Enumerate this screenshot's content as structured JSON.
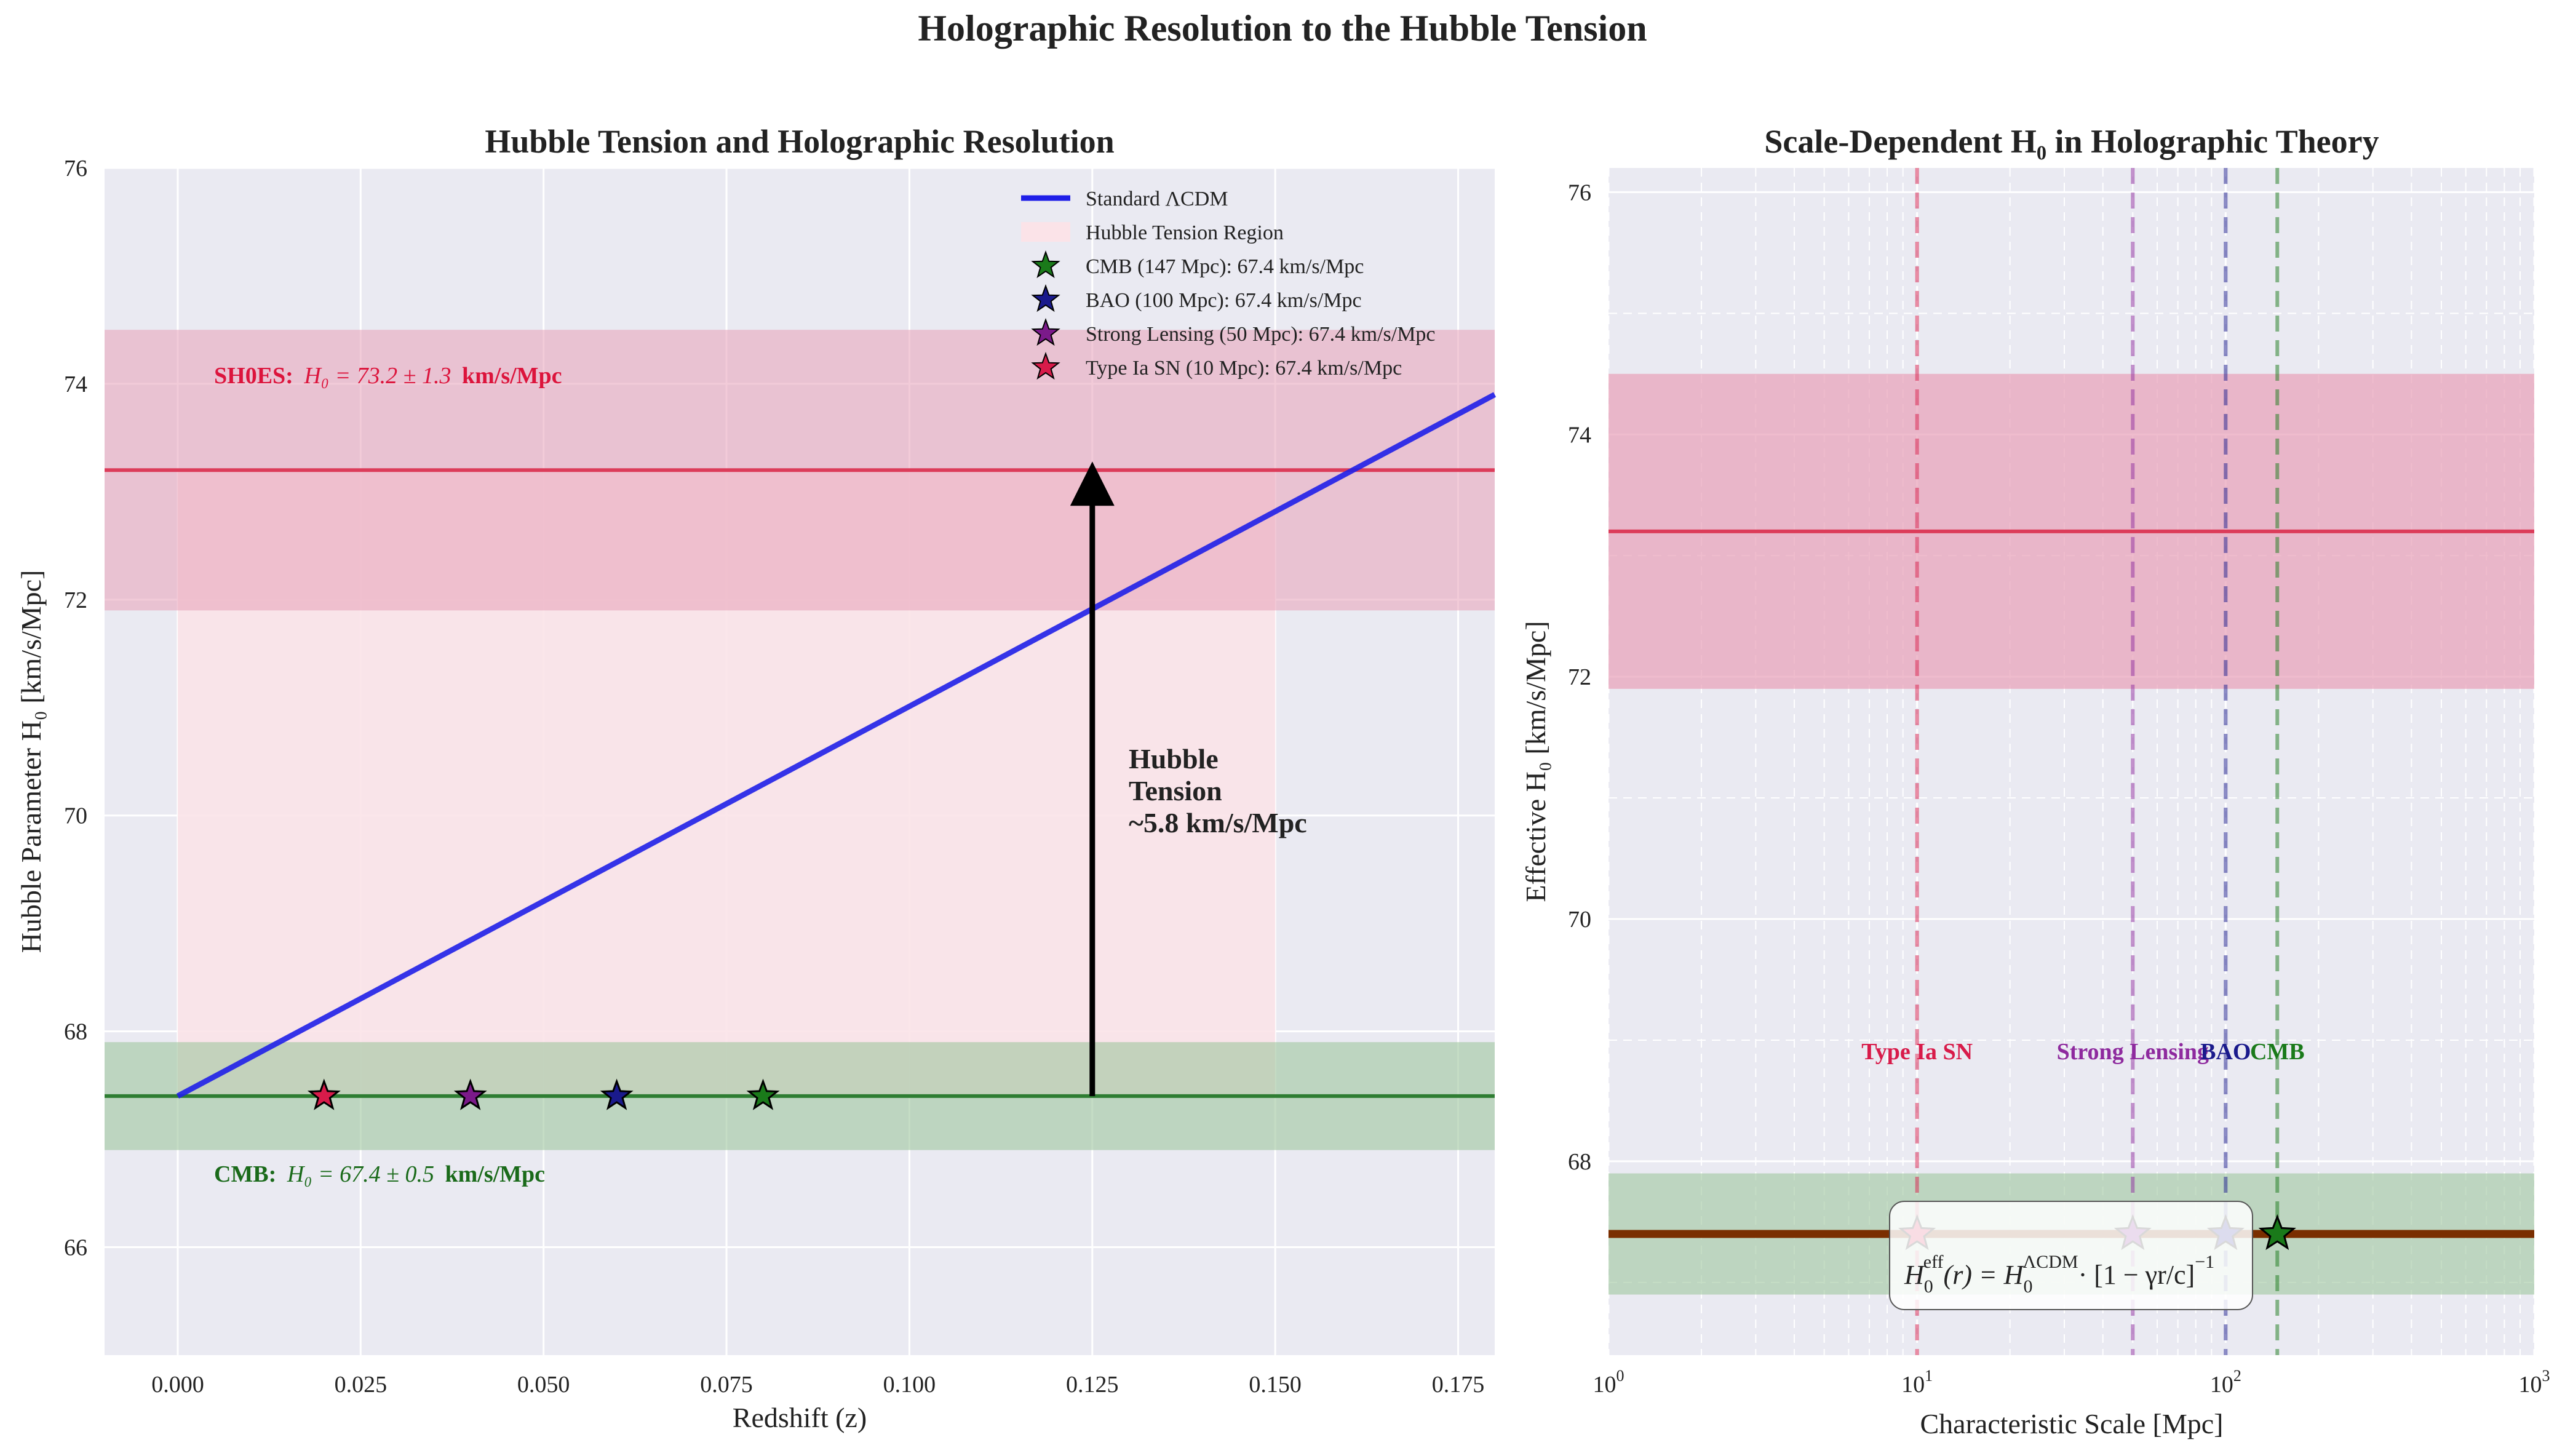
{
  "figure": {
    "suptitle": "Holographic Resolution to the Hubble Tension"
  },
  "chart_data": [
    {
      "type": "line",
      "title": "Hubble Tension and Holographic Resolution",
      "xlabel": "Redshift (z)",
      "ylabel": "Hubble Parameter H₀ [km/s/Mpc]",
      "xlim": [
        -0.01,
        0.18
      ],
      "ylim": [
        65,
        76
      ],
      "xticks": [
        0.0,
        0.025,
        0.05,
        0.075,
        0.1,
        0.125,
        0.15,
        0.175
      ],
      "xtick_labels": [
        "0.000",
        "0.025",
        "0.050",
        "0.075",
        "0.100",
        "0.125",
        "0.150",
        "0.175"
      ],
      "yticks": [
        66,
        68,
        70,
        72,
        74,
        76
      ],
      "ytick_labels": [
        "66",
        "68",
        "70",
        "72",
        "74",
        "76"
      ],
      "grid": true,
      "legend_position": "upper-right",
      "series": [
        {
          "name": "Standard ΛCDM",
          "kind": "line",
          "color": "#1f1fe8",
          "x": [
            0.0,
            0.18
          ],
          "y": [
            67.4,
            73.9
          ]
        }
      ],
      "bands": [
        {
          "name": "SH0ES band",
          "ymin": 71.9,
          "ymax": 74.5,
          "color": "#e8a0b8"
        },
        {
          "name": "CMB band",
          "ymin": 66.9,
          "ymax": 67.9,
          "color": "#9ec79e"
        },
        {
          "name": "Hubble Tension Region",
          "xmin": 0.0,
          "xmax": 0.15,
          "ymin": 67.4,
          "ymax": 73.2,
          "color": "#fbe3e8"
        }
      ],
      "hlines": [
        {
          "y": 73.2,
          "color": "#dc3c5a"
        },
        {
          "y": 67.4,
          "color": "#2e7d32"
        }
      ],
      "markers": [
        {
          "name": "CMB (147 Mpc): 67.4 km/s/Mpc",
          "x": 0.08,
          "y": 67.4,
          "color": "#1a7a1a"
        },
        {
          "name": "BAO (100 Mpc): 67.4 km/s/Mpc",
          "x": 0.06,
          "y": 67.4,
          "color": "#1a1a8c"
        },
        {
          "name": "Strong Lensing (50 Mpc): 67.4 km/s/Mpc",
          "x": 0.04,
          "y": 67.4,
          "color": "#7b1a8a"
        },
        {
          "name": "Type Ia SN (10 Mpc): 67.4 km/s/Mpc",
          "x": 0.02,
          "y": 67.4,
          "color": "#d81b4a"
        }
      ],
      "arrow": {
        "x": 0.125,
        "y_from": 67.4,
        "y_to": 73.2
      },
      "annotations": {
        "shoes_label": "SH0ES:",
        "shoes_value": "H₀ = 73.2 ± 1.3",
        "shoes_unit": "km/s/Mpc",
        "cmb_label": "CMB:",
        "cmb_value": "H₀ = 67.4 ± 0.5",
        "cmb_unit": "km/s/Mpc",
        "tension_line1": "Hubble",
        "tension_line2": "Tension",
        "tension_line3": "~5.8 km/s/Mpc"
      },
      "legend": [
        "Standard ΛCDM",
        "Hubble Tension Region",
        "CMB (147 Mpc): 67.4 km/s/Mpc",
        "BAO (100 Mpc): 67.4 km/s/Mpc",
        "Strong Lensing (50 Mpc): 67.4 km/s/Mpc",
        "Type Ia SN (10 Mpc): 67.4 km/s/Mpc"
      ]
    },
    {
      "type": "line",
      "title": "Scale-Dependent H₀ in Holographic Theory",
      "xlabel": "Characteristic Scale [Mpc]",
      "ylabel": "Effective H₀ [km/s/Mpc]",
      "xscale": "log",
      "xlim": [
        1,
        1000
      ],
      "ylim": [
        66.4,
        76.2
      ],
      "xtick_values": [
        1,
        10,
        100,
        1000
      ],
      "xtick_labels": [
        "10",
        "10",
        "10",
        "10"
      ],
      "xtick_exponents": [
        "0",
        "1",
        "2",
        "3"
      ],
      "yticks": [
        68,
        70,
        72,
        74,
        76
      ],
      "ytick_labels": [
        "68",
        "70",
        "72",
        "74",
        "76"
      ],
      "grid": true,
      "series": [
        {
          "name": "Effective H₀",
          "kind": "line",
          "color": "#7a2e00",
          "x": [
            1,
            1000
          ],
          "y": [
            67.4,
            67.4
          ]
        }
      ],
      "bands": [
        {
          "name": "SH0ES band",
          "ymin": 71.9,
          "ymax": 74.5,
          "color": "#e8a0b8"
        },
        {
          "name": "CMB band",
          "ymin": 66.9,
          "ymax": 67.9,
          "color": "#9ec79e"
        }
      ],
      "hlines": [
        {
          "y": 73.2,
          "color": "#dc3c5a"
        }
      ],
      "vlines": [
        {
          "label": "Type Ia SN",
          "x": 10,
          "color": "#d81b4a"
        },
        {
          "label": "Strong Lensing",
          "x": 50,
          "color": "#8e2a9e"
        },
        {
          "label": "BAO",
          "x": 100,
          "color": "#1a1a8c"
        },
        {
          "label": "CMB",
          "x": 147,
          "color": "#1a7a1a"
        }
      ],
      "markers": [
        {
          "x": 10,
          "y": 67.4,
          "color": "#d81b4a"
        },
        {
          "x": 50,
          "y": 67.4,
          "color": "#7b1a8a"
        },
        {
          "x": 100,
          "y": 67.4,
          "color": "#1a1a8c"
        },
        {
          "x": 147,
          "y": 67.4,
          "color": "#1a7a1a"
        }
      ],
      "formula": {
        "lhs": "H",
        "lhs_sub": "0",
        "lhs_sup": "eff",
        "middle": "(r) = H",
        "rhs_sub": "0",
        "rhs_sup": "ΛCDM",
        "tail": "· [1 − γr/c]",
        "tail_sup": "−1"
      }
    }
  ]
}
